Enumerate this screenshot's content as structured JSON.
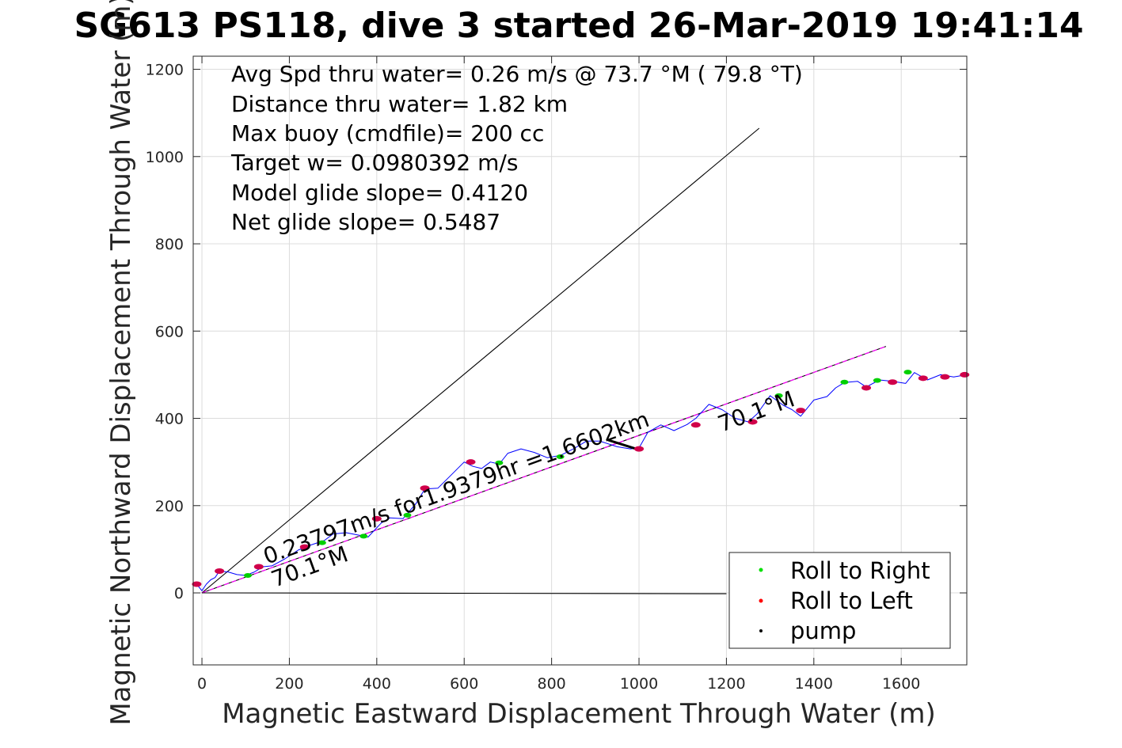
{
  "chart_data": {
    "type": "line",
    "title": "SG613 PS118, dive 3 started 26-Mar-2019 19:41:14",
    "xlabel": "Magnetic Eastward Displacement Through Water (m)",
    "ylabel": "Magnetic Northward Displacement Through Water (m)",
    "xlim": [
      -20,
      1750
    ],
    "ylim": [
      -165,
      1230
    ],
    "xticks": [
      0,
      200,
      400,
      600,
      800,
      1000,
      1200,
      1400,
      1600
    ],
    "yticks": [
      0,
      200,
      400,
      600,
      800,
      1000,
      1200
    ],
    "grid": true,
    "info_lines": [
      "Avg Spd thru water=  0.26 m/s @  73.7 °M ( 79.8 °T)",
      "Distance thru water=  1.82 km",
      "Max buoy (cmdfile)= 200 cc",
      "Target w= 0.0980392 m/s",
      "Model glide slope= 0.4120",
      "Net glide slope= 0.5487"
    ],
    "annotations": {
      "speed": "0.23797m/s for1.9379hr =1.6602km",
      "heading_start": "70.1°M",
      "heading_end": "70.1°M"
    },
    "legend": {
      "placement": "bottom-right",
      "entries": [
        {
          "label": "Roll to Right",
          "color": "#00e000"
        },
        {
          "label": "Roll to Left",
          "color": "#ff0000"
        },
        {
          "label": "pump",
          "color": "#000000"
        }
      ]
    },
    "reference_lines": [
      {
        "points": [
          [
            0,
            0
          ],
          [
            1275,
            1065
          ]
        ],
        "color": "#000000"
      },
      {
        "points": [
          [
            0,
            0
          ],
          [
            1565,
            565
          ]
        ],
        "color": "#000000"
      },
      {
        "points": [
          [
            0,
            0
          ],
          [
            1565,
            565
          ]
        ],
        "color": "#ff00ff"
      },
      {
        "points": [
          [
            0,
            0
          ],
          [
            1200,
            -2
          ]
        ],
        "color": "#000000"
      }
    ],
    "pump_segment": {
      "points": [
        [
          930,
          350
        ],
        [
          1000,
          328
        ]
      ]
    },
    "track": {
      "color": "#0000ff",
      "x": [
        -15,
        -8,
        0,
        10,
        20,
        30,
        40,
        60,
        80,
        100,
        120,
        140,
        160,
        190,
        220,
        250,
        280,
        300,
        330,
        360,
        380,
        410,
        430,
        460,
        490,
        510,
        540,
        570,
        600,
        620,
        640,
        660,
        680,
        700,
        730,
        760,
        790,
        820,
        850,
        880,
        910,
        950,
        980,
        1000,
        1020,
        1050,
        1080,
        1110,
        1130,
        1160,
        1190,
        1220,
        1250,
        1270,
        1300,
        1330,
        1350,
        1370,
        1400,
        1430,
        1450,
        1470,
        1500,
        1520,
        1550,
        1580,
        1610,
        1630,
        1660,
        1690,
        1720,
        1750
      ],
      "y": [
        25,
        15,
        5,
        20,
        30,
        35,
        50,
        48,
        42,
        40,
        48,
        60,
        62,
        78,
        98,
        110,
        120,
        135,
        138,
        132,
        128,
        160,
        172,
        170,
        205,
        238,
        240,
        270,
        300,
        290,
        285,
        300,
        295,
        320,
        330,
        322,
        310,
        315,
        330,
        348,
        348,
        335,
        330,
        332,
        368,
        385,
        372,
        386,
        400,
        432,
        420,
        400,
        392,
        410,
        452,
        430,
        420,
        405,
        442,
        450,
        470,
        482,
        485,
        472,
        488,
        485,
        480,
        505,
        488,
        500,
        495,
        500
      ]
    },
    "roll_right": {
      "x": [
        105,
        275,
        370,
        470,
        680,
        820,
        1320,
        1470,
        1545,
        1615
      ],
      "y": [
        40,
        115,
        130,
        178,
        298,
        312,
        452,
        483,
        487,
        506
      ]
    },
    "roll_left": {
      "x": [
        -12,
        40,
        130,
        235,
        400,
        510,
        615,
        1000,
        1130,
        1260,
        1370,
        1520,
        1580,
        1650,
        1700,
        1745
      ],
      "y": [
        20,
        50,
        60,
        105,
        170,
        240,
        300,
        330,
        385,
        392,
        418,
        470,
        483,
        492,
        495,
        500
      ]
    }
  }
}
